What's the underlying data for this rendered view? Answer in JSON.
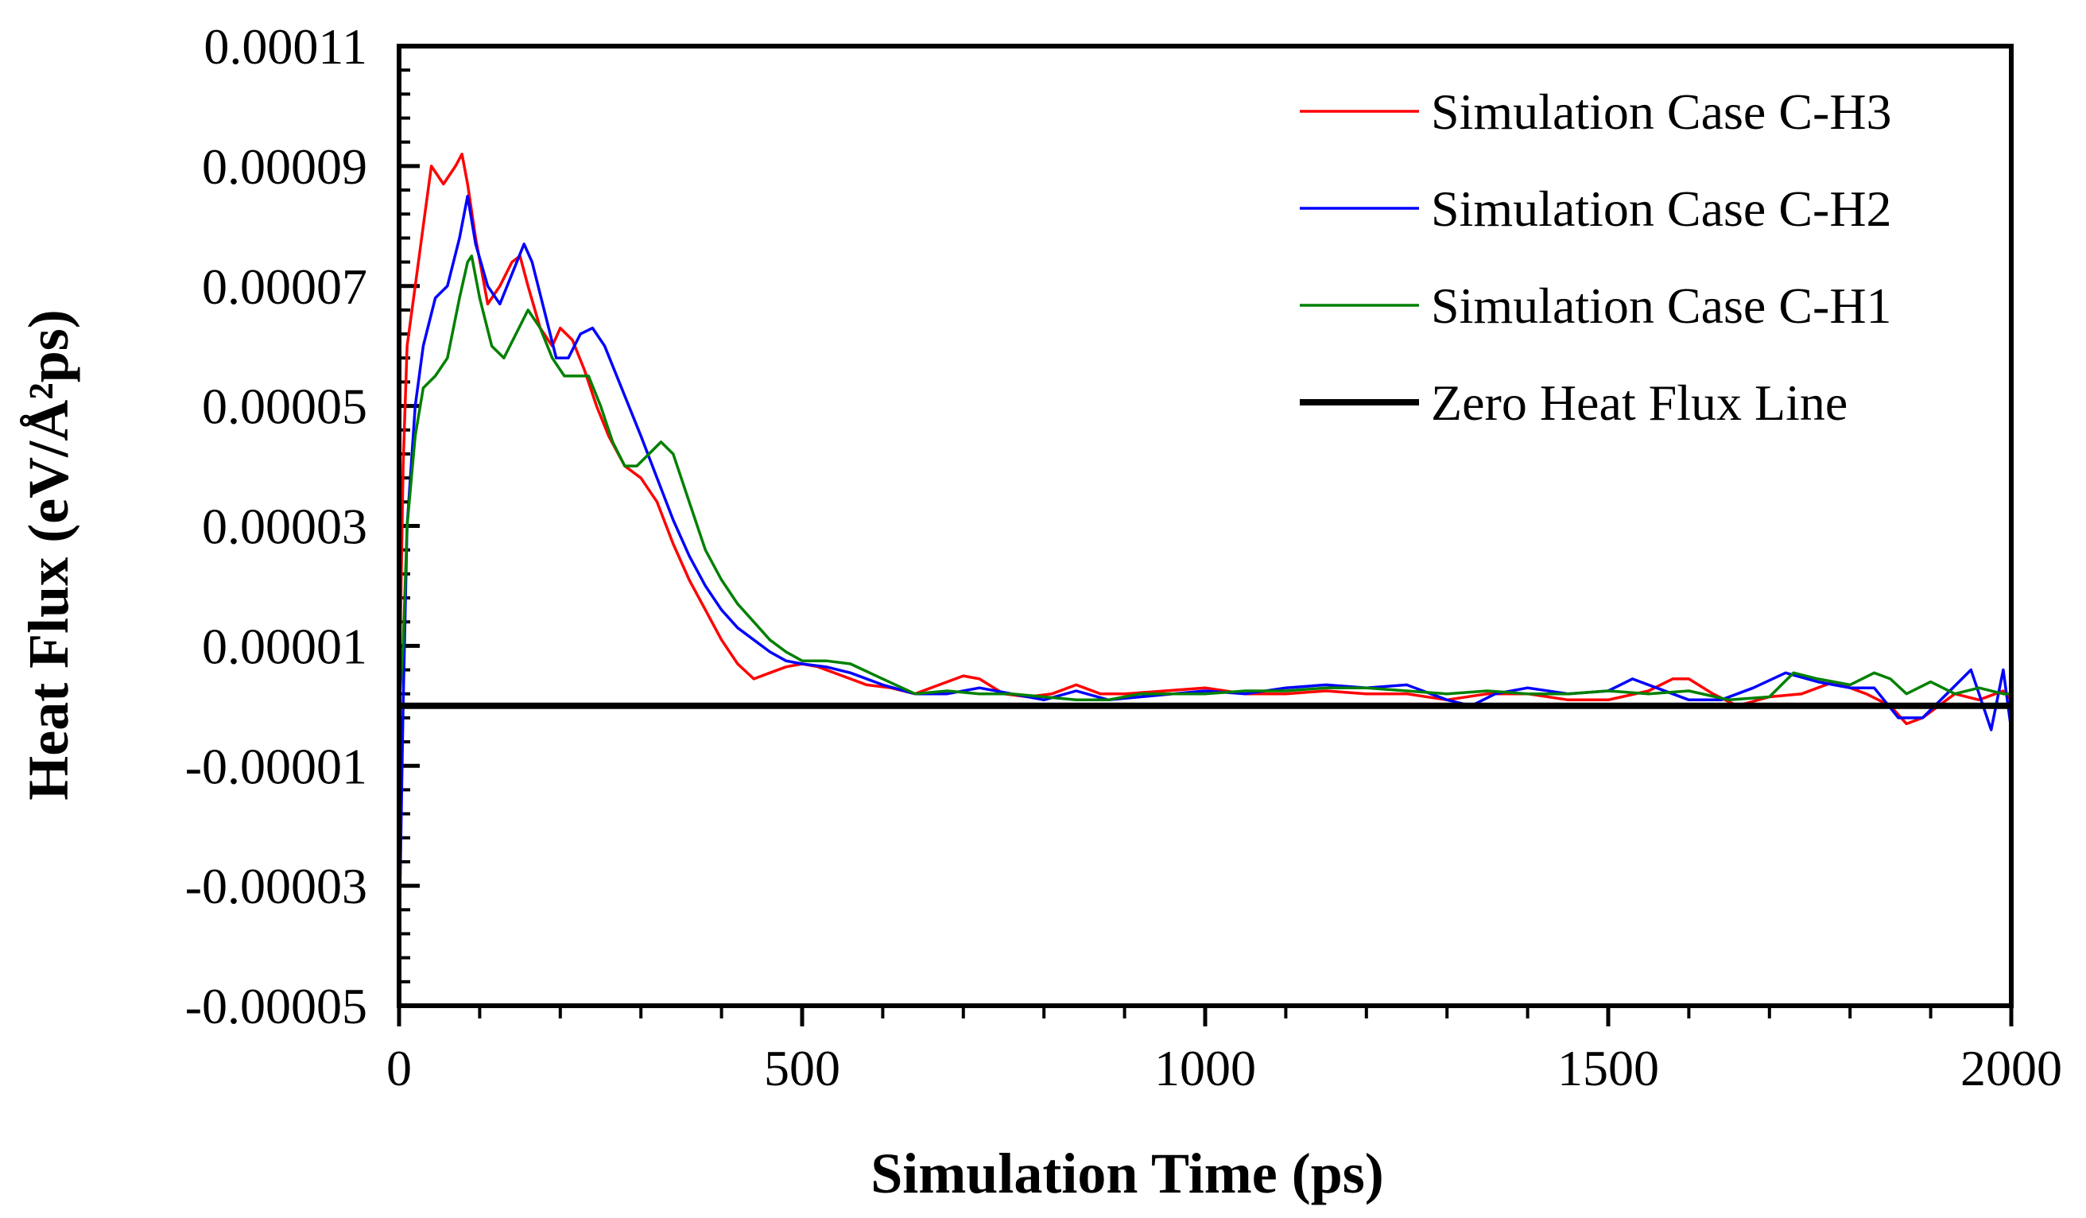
{
  "chart_data": {
    "type": "line",
    "title": "",
    "xlabel": "Simulation Time (ps)",
    "ylabel": "Heat Flux (eV/Å²ps)",
    "xlim": [
      0,
      2000
    ],
    "ylim": [
      -5e-05,
      0.00011
    ],
    "x_ticks": [
      0,
      500,
      1000,
      1500,
      2000
    ],
    "x_tick_labels": [
      "0",
      "500",
      "1000",
      "1500",
      "2000"
    ],
    "y_ticks": [
      -5e-05,
      -3e-05,
      -1e-05,
      1e-05,
      3e-05,
      5e-05,
      7e-05,
      9e-05,
      0.00011
    ],
    "y_tick_labels": [
      "-0.00005",
      "-0.00003",
      "-0.00001",
      "0.00001",
      "0.00003",
      "0.00005",
      "0.00007",
      "0.00009",
      "0.00011"
    ],
    "legend_position": "top-right",
    "series": [
      {
        "name": "Simulation Case C-H3",
        "color": "#ff0000",
        "x": [
          0,
          5,
          10,
          20,
          30,
          40,
          55,
          70,
          78,
          85,
          95,
          110,
          125,
          140,
          150,
          160,
          175,
          190,
          200,
          215,
          230,
          245,
          260,
          280,
          300,
          320,
          340,
          360,
          380,
          400,
          420,
          440,
          460,
          480,
          500,
          520,
          550,
          580,
          610,
          640,
          670,
          700,
          720,
          750,
          780,
          810,
          840,
          870,
          900,
          950,
          1000,
          1050,
          1100,
          1150,
          1200,
          1250,
          1300,
          1350,
          1400,
          1450,
          1500,
          1550,
          1580,
          1600,
          1630,
          1660,
          1700,
          1740,
          1780,
          1820,
          1850,
          1870,
          1890,
          1910,
          1930,
          1960,
          1990,
          2000
        ],
        "y": [
          0,
          4e-05,
          6e-05,
          7e-05,
          8e-05,
          9e-05,
          8.7e-05,
          9e-05,
          9.2e-05,
          8.7e-05,
          7.8e-05,
          6.7e-05,
          7e-05,
          7.4e-05,
          7.5e-05,
          7e-05,
          6.3e-05,
          6e-05,
          6.3e-05,
          6.1e-05,
          5.6e-05,
          5e-05,
          4.5e-05,
          4e-05,
          3.8e-05,
          3.4e-05,
          2.7e-05,
          2.1e-05,
          1.6e-05,
          1.1e-05,
          7e-06,
          4.5e-06,
          5.5e-06,
          6.5e-06,
          7e-06,
          6.5e-06,
          5e-06,
          3.5e-06,
          3e-06,
          2e-06,
          3.5e-06,
          5e-06,
          4.5e-06,
          2e-06,
          1.5e-06,
          2e-06,
          3.5e-06,
          2e-06,
          2e-06,
          2.5e-06,
          3e-06,
          2e-06,
          2e-06,
          2.5e-06,
          2e-06,
          2e-06,
          1e-06,
          2e-06,
          2e-06,
          1e-06,
          1e-06,
          2.5e-06,
          4.5e-06,
          4.5e-06,
          2e-06,
          0,
          1.5e-06,
          2e-06,
          4e-06,
          2e-06,
          0,
          -3e-06,
          -2e-06,
          0,
          2e-06,
          1e-06,
          2.5e-06,
          1e-06
        ]
      },
      {
        "name": "Simulation Case C-H2",
        "color": "#0000ff",
        "x": [
          0,
          5,
          10,
          20,
          30,
          45,
          60,
          75,
          85,
          95,
          110,
          125,
          140,
          155,
          165,
          180,
          195,
          210,
          225,
          240,
          255,
          270,
          285,
          300,
          320,
          340,
          360,
          380,
          400,
          420,
          440,
          460,
          480,
          500,
          530,
          560,
          600,
          640,
          680,
          720,
          760,
          800,
          840,
          880,
          920,
          960,
          1000,
          1050,
          1100,
          1150,
          1200,
          1250,
          1300,
          1330,
          1360,
          1400,
          1450,
          1500,
          1530,
          1560,
          1600,
          1640,
          1680,
          1720,
          1760,
          1800,
          1830,
          1860,
          1890,
          1920,
          1950,
          1975,
          1990,
          2000
        ],
        "y": [
          -4e-05,
          0,
          3e-05,
          5e-05,
          6e-05,
          6.8e-05,
          7e-05,
          7.8e-05,
          8.5e-05,
          7.7e-05,
          7e-05,
          6.7e-05,
          7.2e-05,
          7.7e-05,
          7.4e-05,
          6.6e-05,
          5.8e-05,
          5.8e-05,
          6.2e-05,
          6.3e-05,
          6e-05,
          5.5e-05,
          5e-05,
          4.5e-05,
          3.8e-05,
          3.1e-05,
          2.5e-05,
          2e-05,
          1.6e-05,
          1.3e-05,
          1.1e-05,
          9e-06,
          7.5e-06,
          7e-06,
          6.5e-06,
          5.5e-06,
          3.5e-06,
          2e-06,
          2e-06,
          3e-06,
          2e-06,
          1e-06,
          2.5e-06,
          1e-06,
          1.5e-06,
          2e-06,
          2.5e-06,
          2e-06,
          3e-06,
          3.5e-06,
          3e-06,
          3.5e-06,
          1e-06,
          0,
          2e-06,
          3e-06,
          2e-06,
          2.5e-06,
          4.5e-06,
          3e-06,
          1e-06,
          1e-06,
          3e-06,
          5.5e-06,
          4e-06,
          3e-06,
          3e-06,
          -2e-06,
          -2e-06,
          2e-06,
          6e-06,
          -4e-06,
          6e-06,
          -4e-06
        ]
      },
      {
        "name": "Simulation Case C-H1",
        "color": "#008000",
        "x": [
          0,
          5,
          10,
          20,
          30,
          45,
          60,
          75,
          85,
          90,
          100,
          115,
          130,
          145,
          160,
          175,
          190,
          205,
          220,
          235,
          250,
          265,
          280,
          295,
          310,
          325,
          340,
          360,
          380,
          400,
          420,
          440,
          460,
          480,
          500,
          530,
          560,
          600,
          640,
          680,
          720,
          760,
          800,
          840,
          880,
          920,
          960,
          1000,
          1050,
          1100,
          1150,
          1200,
          1250,
          1300,
          1350,
          1400,
          1450,
          1500,
          1550,
          1600,
          1650,
          1700,
          1730,
          1760,
          1800,
          1830,
          1850,
          1870,
          1900,
          1930,
          1960,
          1990,
          2000
        ],
        "y": [
          0,
          1e-05,
          3e-05,
          4.5e-05,
          5.3e-05,
          5.5e-05,
          5.8e-05,
          6.8e-05,
          7.4e-05,
          7.5e-05,
          6.8e-05,
          6e-05,
          5.8e-05,
          6.2e-05,
          6.6e-05,
          6.3e-05,
          5.8e-05,
          5.5e-05,
          5.5e-05,
          5.5e-05,
          5e-05,
          4.4e-05,
          4e-05,
          4e-05,
          4.2e-05,
          4.4e-05,
          4.2e-05,
          3.4e-05,
          2.6e-05,
          2.1e-05,
          1.7e-05,
          1.4e-05,
          1.1e-05,
          9e-06,
          7.5e-06,
          7.5e-06,
          7e-06,
          4.5e-06,
          2e-06,
          2.5e-06,
          2e-06,
          2e-06,
          1.5e-06,
          1e-06,
          1e-06,
          2e-06,
          2e-06,
          2e-06,
          2.5e-06,
          2.5e-06,
          3e-06,
          3e-06,
          2.5e-06,
          2e-06,
          2.5e-06,
          2e-06,
          2e-06,
          2.5e-06,
          2e-06,
          2.5e-06,
          1e-06,
          1.5e-06,
          5.5e-06,
          4.5e-06,
          3.5e-06,
          5.5e-06,
          4.5e-06,
          2e-06,
          4e-06,
          2e-06,
          3e-06,
          2e-06,
          2e-06
        ]
      },
      {
        "name": "Zero Heat Flux Line",
        "color": "#000000",
        "x": [
          0,
          2000
        ],
        "y": [
          0,
          0
        ]
      }
    ]
  }
}
